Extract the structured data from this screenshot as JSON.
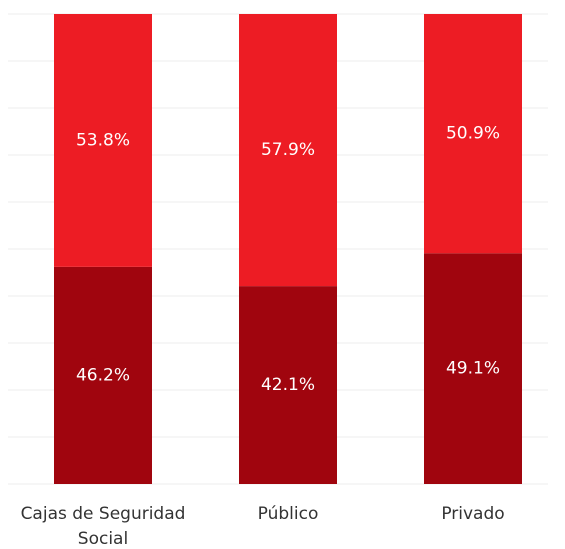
{
  "chart_data": {
    "type": "stacked_bar",
    "categories": [
      "Cajas de Seguridad Social",
      "Público",
      "Privado"
    ],
    "series": [
      {
        "color": "#a0050e",
        "values": [
          46.2,
          42.1,
          49.1
        ],
        "value_labels": [
          "46.2%",
          "42.1%",
          "49.1%"
        ]
      },
      {
        "color": "#ed1c24",
        "values": [
          53.8,
          57.9,
          50.9
        ],
        "value_labels": [
          "53.8%",
          "57.9%",
          "50.9%"
        ]
      }
    ],
    "ylim": [
      0,
      100
    ],
    "yticks": [
      0,
      10,
      20,
      30,
      40,
      50,
      60,
      70,
      80,
      90,
      100
    ],
    "grid": true
  }
}
